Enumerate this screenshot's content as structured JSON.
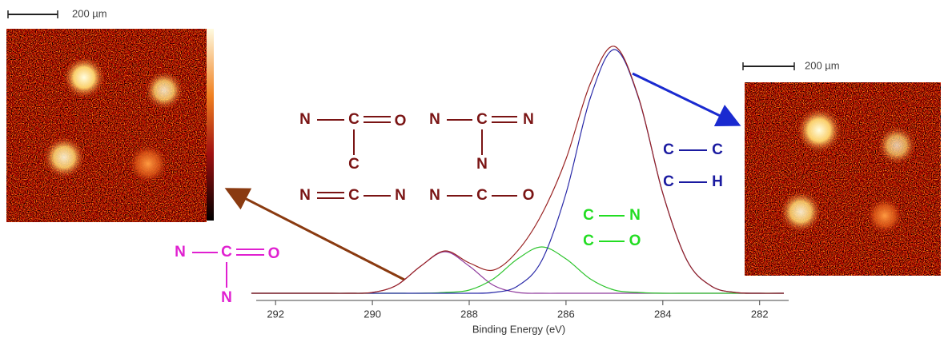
{
  "chart_data": {
    "type": "line",
    "x_label": "Binding Energy (eV)",
    "xlim": [
      292.4,
      281.4
    ],
    "xticks": [
      292,
      290,
      288,
      286,
      284,
      282
    ],
    "ylim": [
      0,
      330
    ],
    "x": [
      292.5,
      292,
      291.5,
      291,
      290.5,
      290,
      289.5,
      289,
      288.5,
      288,
      287.5,
      287,
      286.5,
      286,
      285.5,
      285,
      284.5,
      284,
      283.5,
      283,
      282.5,
      282,
      281.5
    ],
    "series": [
      {
        "color": "#8e3a9c",
        "values": [
          0,
          0,
          0,
          0,
          0,
          1,
          10,
          34,
          52,
          34,
          10,
          1,
          0,
          0,
          0,
          0,
          0,
          0,
          0,
          0,
          0,
          0,
          0
        ]
      },
      {
        "color": "#2ec42e",
        "values": [
          0,
          0,
          0,
          0,
          0,
          0,
          0,
          0,
          1,
          4,
          18,
          43,
          58,
          43,
          18,
          4,
          1,
          0,
          0,
          0,
          0,
          0,
          0
        ]
      },
      {
        "color": "#2a2aa8",
        "values": [
          0,
          0,
          0,
          0,
          0,
          0,
          0,
          0,
          0,
          0,
          1,
          9,
          41,
          125,
          244,
          305,
          244,
          125,
          41,
          9,
          1,
          0,
          0
        ]
      },
      {
        "color": "#9a2424",
        "values": [
          0,
          0,
          0,
          0,
          0,
          1,
          10,
          34,
          53,
          38,
          29,
          53,
          99,
          168,
          262,
          309,
          245,
          125,
          41,
          9,
          1,
          0,
          0
        ]
      }
    ],
    "scale_bars": [
      "200 µm",
      "200 µm"
    ],
    "structures": [
      {
        "color": "#7a1414",
        "atoms": [
          "N",
          "C",
          "O",
          "C"
        ]
      },
      {
        "color": "#7a1414",
        "atoms": [
          "N",
          "C",
          "N",
          "N"
        ]
      },
      {
        "color": "#7a1414",
        "atoms": [
          "N",
          "C",
          "N"
        ]
      },
      {
        "color": "#7a1414",
        "atoms": [
          "N",
          "C",
          "O"
        ]
      },
      {
        "color": "#e020d0",
        "atoms": [
          "N",
          "C",
          "O",
          "N"
        ]
      },
      {
        "color": "#22dd22",
        "atoms": [
          "C",
          "N",
          "C",
          "O"
        ]
      },
      {
        "color": "#1a1aa0",
        "atoms": [
          "C",
          "C",
          "C",
          "H"
        ]
      }
    ]
  }
}
